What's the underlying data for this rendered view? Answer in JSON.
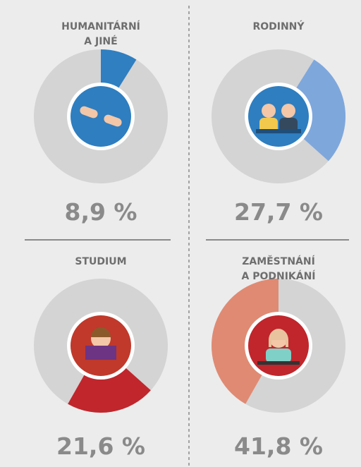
{
  "chart_data": {
    "type": "donut-grid",
    "categories": [
      [
        "HUMANITÁRNÍ",
        "A JINÉ"
      ],
      [
        "RODINNÝ"
      ],
      [
        "STUDIUM"
      ],
      [
        "ZAMĚSTNÁNÍ",
        "A PODNIKÁNÍ"
      ]
    ],
    "values": [
      8.9,
      27.7,
      21.6,
      41.8
    ],
    "value_labels": [
      "8,9 %",
      "27,7 %",
      "21,6 %",
      "41,8 %"
    ],
    "colors": [
      "#2f7fc1",
      "#7ea7dc",
      "#c0262c",
      "#e08a73"
    ],
    "track_color": "#d4d4d4"
  }
}
